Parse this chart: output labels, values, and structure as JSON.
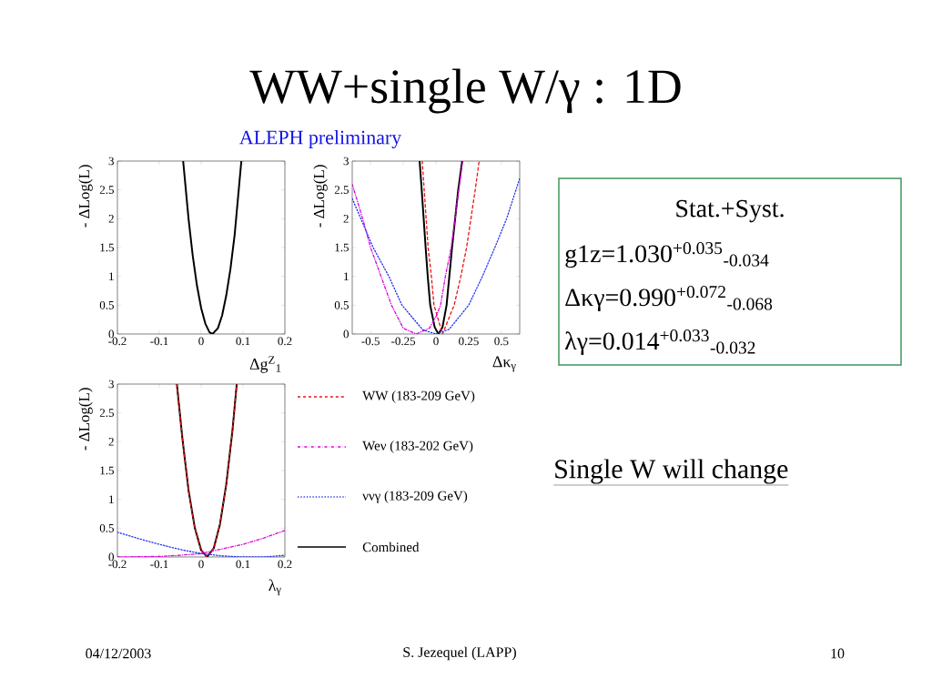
{
  "chart_data": [
    {
      "type": "line",
      "title": "WW+single W/γ : 1D",
      "subtitle": "ALEPH preliminary",
      "annotations": [
        "04/12/2003",
        "S. Jezequel (LAPP)",
        "10"
      ],
      "xlabel": "Δg$^{Z}$$_{1}$",
      "ylabel": "- ΔLog(L)",
      "xlim": [
        -0.2,
        0.2
      ],
      "xticks": [
        -0.2,
        -0.1,
        0,
        0.1,
        0.2
      ],
      "ylim": [
        0,
        3
      ],
      "yticks": [
        0,
        0.5,
        1,
        1.5,
        2,
        2.5,
        3
      ],
      "series": [
        {
          "color": "#000000",
          "line_style": "solid",
          "x": [
            -0.043,
            -0.03,
            -0.02,
            -0.01,
            0,
            0.01,
            0.02,
            0.027,
            0.04,
            0.05,
            0.06,
            0.07,
            0.08,
            0.096
          ],
          "values": [
            3,
            1.99,
            1.35,
            0.84,
            0.45,
            0.18,
            0.03,
            0,
            0.1,
            0.32,
            0.67,
            1.13,
            1.72,
            3
          ]
        }
      ]
    },
    {
      "type": "line",
      "xlabel": "Δκ$_{γ}$",
      "ylabel": "- ΔLog(L)",
      "xlim": [
        -0.64,
        0.64
      ],
      "xticks": [
        -0.5,
        -0.25,
        0,
        0.25,
        0.5
      ],
      "ylim": [
        0,
        3
      ],
      "yticks": [
        0,
        0.5,
        1,
        1.5,
        2,
        2.5,
        3
      ],
      "series": [
        {
          "color": "#ee1111",
          "line_style": "dashed",
          "x": [
            -0.105,
            -0.06,
            -0.035,
            -0.015,
            0.05,
            0.139,
            0.19,
            0.234,
            0.3,
            0.33
          ],
          "values": [
            3,
            1.5,
            1,
            0.5,
            0,
            0.5,
            1,
            1.5,
            2.5,
            3
          ]
        },
        {
          "color": "#dd00dd",
          "line_style": "dashdot",
          "x": [
            -0.64,
            -0.56,
            -0.5,
            -0.42,
            -0.34,
            -0.25,
            -0.15,
            -0.05,
            0,
            0.035,
            0.072,
            0.116,
            0.146,
            0.174,
            0.204
          ],
          "values": [
            2.6,
            2,
            1.5,
            1,
            0.5,
            0.1,
            0,
            0.1,
            0.3,
            0.5,
            1,
            1.5,
            2,
            2.5,
            3
          ]
        },
        {
          "color": "#2233ee",
          "line_style": "dotted",
          "x": [
            -0.64,
            -0.48,
            -0.36,
            -0.26,
            -0.1,
            0,
            0.1,
            0.25,
            0.355,
            0.45,
            0.54,
            0.64
          ],
          "values": [
            2.35,
            1.5,
            1,
            0.5,
            0.07,
            0,
            0.08,
            0.5,
            1,
            1.5,
            2,
            2.7
          ]
        },
        {
          "color": "#000000",
          "line_style": "solid",
          "x": [
            -0.125,
            -0.109,
            -0.079,
            -0.063,
            -0.044,
            -0.01,
            0.019,
            0.05,
            0.081,
            0.102,
            0.123,
            0.17,
            0.2
          ],
          "values": [
            3,
            2.5,
            1.5,
            1,
            0.5,
            0.12,
            0,
            0.12,
            0.5,
            1,
            1.5,
            2.5,
            3
          ]
        }
      ]
    },
    {
      "type": "line",
      "xlabel": "λ$_{γ}$",
      "ylabel": "- ΔLog(L)",
      "xlim": [
        -0.2,
        0.2
      ],
      "xticks": [
        -0.2,
        -0.1,
        0,
        0.1,
        0.2
      ],
      "ylim": [
        0,
        3
      ],
      "yticks": [
        0,
        0.5,
        1,
        1.5,
        2,
        2.5,
        3
      ],
      "legend": "right",
      "series": [
        {
          "name": "WW (183-209 GeV)",
          "color": "#ee1111",
          "line_style": "dashed",
          "x": [
            -0.058,
            -0.045,
            -0.03,
            -0.015,
            0,
            0.014,
            0.03,
            0.045,
            0.06,
            0.075,
            0.085
          ],
          "values": [
            3,
            2.07,
            1.15,
            0.5,
            0.12,
            0,
            0.15,
            0.57,
            1.26,
            2.21,
            3
          ]
        },
        {
          "name": "Weν (183-202 GeV)",
          "color": "#dd00dd",
          "line_style": "dashdot",
          "x": [
            -0.2,
            -0.1,
            -0.05,
            0,
            0.05,
            0.1,
            0.15,
            0.2
          ],
          "values": [
            0,
            0.01,
            0.03,
            0.06,
            0.14,
            0.22,
            0.33,
            0.46
          ]
        },
        {
          "name": "ννγ (183-209 GeV)",
          "color": "#2233ee",
          "line_style": "dotted",
          "x": [
            -0.2,
            -0.15,
            -0.1,
            -0.05,
            0,
            0.05,
            0.1,
            0.15,
            0.2
          ],
          "values": [
            0.43,
            0.32,
            0.22,
            0.13,
            0.06,
            0.02,
            0,
            0,
            0.03
          ]
        },
        {
          "name": "Combined",
          "color": "#000000",
          "line_style": "solid",
          "x": [
            -0.058,
            -0.045,
            -0.03,
            -0.015,
            0,
            0.014,
            0.03,
            0.045,
            0.06,
            0.075,
            0.085
          ],
          "values": [
            3,
            2.07,
            1.15,
            0.5,
            0.12,
            0,
            0.15,
            0.57,
            1.26,
            2.21,
            3
          ]
        }
      ]
    },
    {
      "type": "other",
      "title": "Stat.+Syst.",
      "annotations": [
        "g1z=1.030$^{+0.035}$$_{-0.034}$",
        "Δκγ=0.990$^{+0.072}$$_{-0.068}$",
        "λγ=0.014$^{+0.033}$$_{-0.032}$",
        "Single W will change"
      ]
    }
  ]
}
